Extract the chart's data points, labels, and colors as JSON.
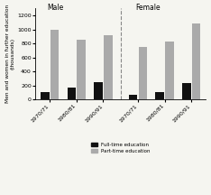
{
  "title_male": "Male",
  "title_female": "Female",
  "ylabel": "Men and women in further education\n(thousands)",
  "categories": [
    "1970/71",
    "1980/81",
    "1990/91"
  ],
  "male_fulltime": [
    100,
    170,
    250
  ],
  "male_parttime": [
    1000,
    860,
    920
  ],
  "female_fulltime": [
    70,
    100,
    230
  ],
  "female_parttime": [
    750,
    830,
    1090
  ],
  "ylim": [
    0,
    1300
  ],
  "yticks": [
    0,
    200,
    400,
    600,
    800,
    1000,
    1200
  ],
  "color_fulltime": "#111111",
  "color_parttime": "#aaaaaa",
  "legend_fulltime": "Full-time education",
  "legend_parttime": "Part-time education",
  "bar_width": 0.32,
  "background": "#f5f5f0"
}
